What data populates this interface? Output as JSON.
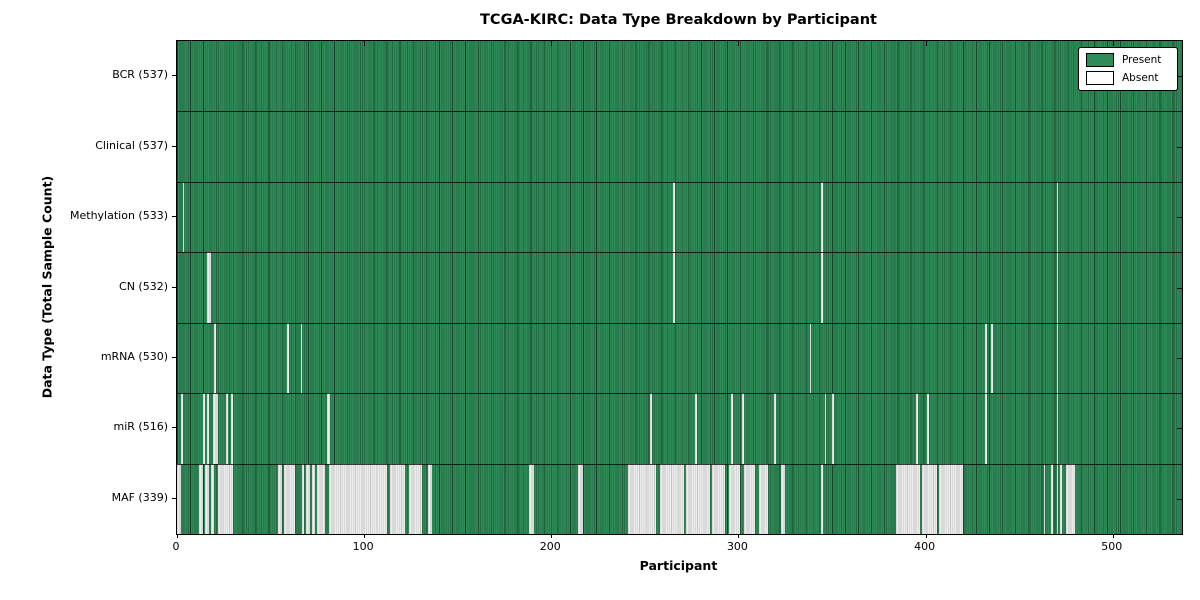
{
  "title": "TCGA-KIRC: Data Type Breakdown by Participant",
  "axes": {
    "xlabel": "Participant",
    "ylabel": "Data Type (Total Sample Count)"
  },
  "legend": {
    "present_label": "Present",
    "absent_label": "Absent"
  },
  "colors": {
    "present": "#2E8B57",
    "absent": "#ECECEC",
    "edge": "#000000"
  },
  "chart_data": {
    "type": "heatmap",
    "title": "TCGA-KIRC: Data Type Breakdown by Participant",
    "xlabel": "Participant",
    "ylabel": "Data Type (Total Sample Count)",
    "legend_entries": [
      "Present",
      "Absent"
    ],
    "legend_position": "upper right",
    "x_range": [
      0,
      537
    ],
    "n_participants": 537,
    "x_ticks": [
      0,
      100,
      200,
      300,
      400,
      500
    ],
    "rows": [
      {
        "label": "BCR",
        "total": 537,
        "absent_ranges": []
      },
      {
        "label": "Clinical",
        "total": 537,
        "absent_ranges": []
      },
      {
        "label": "Methylation",
        "total": 533,
        "absent_ranges": [
          [
            3,
            3
          ],
          [
            265,
            265
          ],
          [
            344,
            344
          ],
          [
            470,
            470
          ]
        ]
      },
      {
        "label": "CN",
        "total": 532,
        "absent_ranges": [
          [
            16,
            17
          ],
          [
            265,
            265
          ],
          [
            344,
            344
          ],
          [
            470,
            470
          ]
        ]
      },
      {
        "label": "mRNA",
        "total": 530,
        "absent_ranges": [
          [
            20,
            20
          ],
          [
            59,
            59
          ],
          [
            66,
            66
          ],
          [
            338,
            338
          ],
          [
            432,
            432
          ],
          [
            435,
            435
          ],
          [
            470,
            470
          ]
        ]
      },
      {
        "label": "miR",
        "total": 516,
        "absent_ranges": [
          [
            2,
            2
          ],
          [
            14,
            14
          ],
          [
            16,
            16
          ],
          [
            19,
            21
          ],
          [
            26,
            26
          ],
          [
            29,
            29
          ],
          [
            80,
            81
          ],
          [
            253,
            253
          ],
          [
            277,
            277
          ],
          [
            296,
            296
          ],
          [
            302,
            302
          ],
          [
            319,
            319
          ],
          [
            346,
            346
          ],
          [
            350,
            350
          ],
          [
            395,
            395
          ],
          [
            401,
            401
          ],
          [
            432,
            432
          ],
          [
            470,
            470
          ]
        ]
      },
      {
        "label": "MAF",
        "total": 339,
        "absent_ranges": [
          [
            0,
            1
          ],
          [
            12,
            13
          ],
          [
            15,
            16
          ],
          [
            18,
            19
          ],
          [
            22,
            29
          ],
          [
            54,
            55
          ],
          [
            57,
            62
          ],
          [
            67,
            67
          ],
          [
            69,
            70
          ],
          [
            72,
            73
          ],
          [
            75,
            78
          ],
          [
            81,
            111
          ],
          [
            114,
            121
          ],
          [
            124,
            130
          ],
          [
            134,
            135
          ],
          [
            188,
            190
          ],
          [
            214,
            216
          ],
          [
            241,
            255
          ],
          [
            258,
            270
          ],
          [
            272,
            284
          ],
          [
            286,
            292
          ],
          [
            295,
            300
          ],
          [
            303,
            308
          ],
          [
            311,
            315
          ],
          [
            323,
            324
          ],
          [
            344,
            344
          ],
          [
            384,
            396
          ],
          [
            398,
            405
          ],
          [
            407,
            419
          ],
          [
            463,
            463
          ],
          [
            467,
            467
          ],
          [
            470,
            470
          ],
          [
            472,
            472
          ],
          [
            475,
            479
          ]
        ]
      }
    ]
  }
}
